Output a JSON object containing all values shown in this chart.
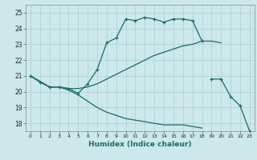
{
  "xlabel": "Humidex (Indice chaleur)",
  "bg_color": "#cce8ea",
  "grid_color": "#aacfd2",
  "line_color": "#1a6b6b",
  "xlim": [
    -0.5,
    23.5
  ],
  "ylim": [
    17.5,
    25.5
  ],
  "yticks": [
    18,
    19,
    20,
    21,
    22,
    23,
    24,
    25
  ],
  "xticks": [
    0,
    1,
    2,
    3,
    4,
    5,
    6,
    7,
    8,
    9,
    10,
    11,
    12,
    13,
    14,
    15,
    16,
    17,
    18,
    19,
    20,
    21,
    22,
    23
  ],
  "lines": [
    {
      "x": [
        0,
        1,
        2,
        3,
        4,
        5,
        6,
        7,
        8,
        9,
        10,
        11,
        12,
        13,
        14,
        15,
        16,
        17,
        18
      ],
      "y": [
        21.0,
        20.6,
        20.3,
        20.3,
        20.2,
        19.9,
        20.5,
        21.4,
        23.1,
        23.4,
        24.6,
        24.5,
        24.7,
        24.6,
        24.4,
        24.6,
        24.6,
        24.5,
        23.2
      ],
      "marker": true
    },
    {
      "x": [
        0,
        2,
        3,
        4,
        5,
        6,
        7,
        8,
        9,
        10,
        11,
        12,
        13,
        14,
        15,
        16,
        17,
        18,
        19,
        20
      ],
      "y": [
        21.0,
        20.3,
        20.3,
        20.2,
        20.2,
        20.3,
        20.5,
        20.8,
        21.1,
        21.4,
        21.7,
        22.0,
        22.3,
        22.5,
        22.7,
        22.9,
        23.0,
        23.2,
        23.2,
        23.1
      ],
      "marker": false
    },
    {
      "x": [
        0,
        2,
        3,
        4,
        5,
        6,
        7,
        8,
        9,
        10,
        11,
        12,
        13,
        14,
        15,
        16,
        17,
        18
      ],
      "y": [
        21.0,
        20.3,
        20.3,
        20.1,
        19.8,
        19.4,
        19.0,
        18.7,
        18.5,
        18.3,
        18.2,
        18.1,
        18.0,
        17.9,
        17.9,
        17.9,
        17.8,
        17.7
      ],
      "marker": false
    },
    {
      "x": [
        19,
        20,
        21,
        22,
        23
      ],
      "y": [
        20.8,
        20.8,
        19.7,
        19.1,
        17.5
      ],
      "marker": true
    }
  ]
}
